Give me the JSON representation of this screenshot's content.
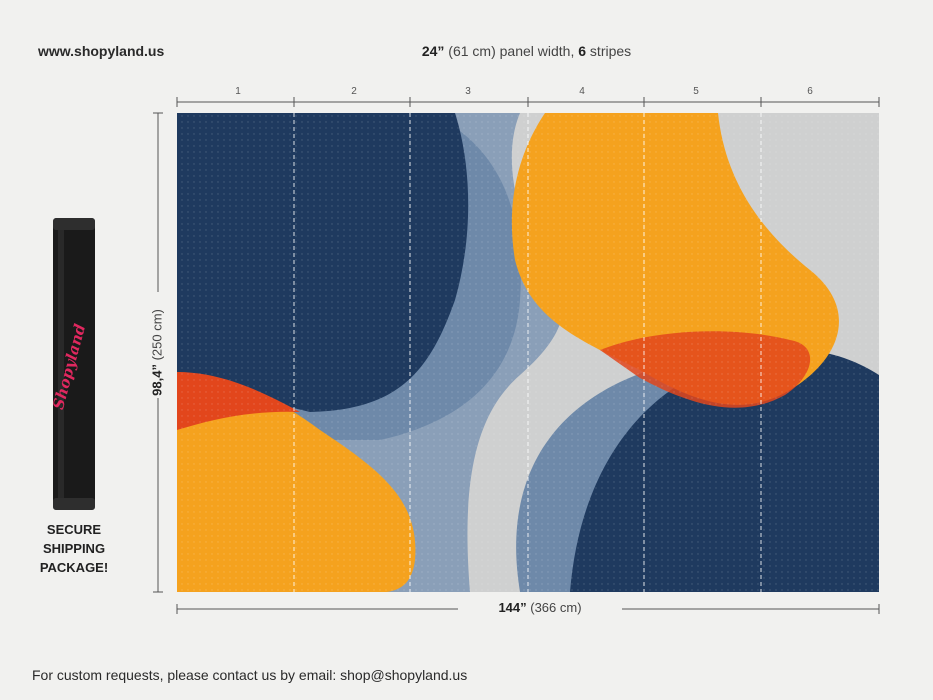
{
  "header": {
    "site_url": "www.shopyland.us",
    "panel_width_main": "24”",
    "panel_width_metric": " (61 cm) panel width, ",
    "stripes_count": "6",
    "stripes_word": " stripes"
  },
  "ruler": {
    "stripes": [
      "1",
      "2",
      "3",
      "4",
      "5",
      "6"
    ]
  },
  "dimensions": {
    "height_main": "98,4”",
    "height_metric": " (250 cm)",
    "width_main": "144”",
    "width_metric": " (366 cm)"
  },
  "package": {
    "brand_logo": "Shopyland",
    "label": "SECURE SHIPPING PACKAGE!"
  },
  "footer": {
    "contact": "For custom requests, please contact us by email: shop@shopyland.us"
  },
  "colors": {
    "navy": "#1f3a5f",
    "steel_blue": "#6e89a9",
    "orange": "#f5a21e",
    "red_orange": "#e2461c",
    "concrete": "#cfd0d0",
    "logo_pink": "#e0285f"
  }
}
